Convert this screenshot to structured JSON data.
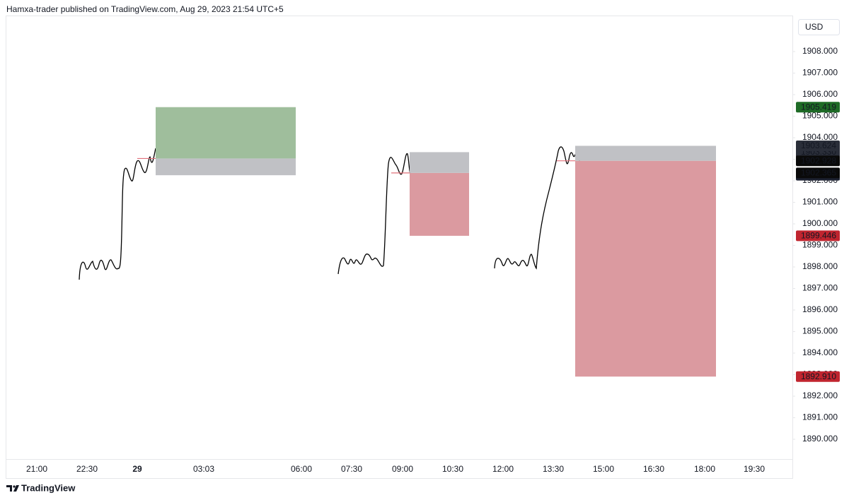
{
  "chart_data": {
    "type": "position",
    "title": "Hamxa-trader published on TradingView.com, Aug 29, 2023 21:54 UTC+5",
    "currency": "USD",
    "brand": "TradingView",
    "ylim": [
      1889.082,
      1909.672
    ],
    "yticks": [
      {
        "value": 1890,
        "label": "1890.000"
      },
      {
        "value": 1891,
        "label": "1891.000"
      },
      {
        "value": 1892,
        "label": "1892.000"
      },
      {
        "value": 1893,
        "label": "1893.000"
      },
      {
        "value": 1894,
        "label": "1894.000"
      },
      {
        "value": 1895,
        "label": "1895.000"
      },
      {
        "value": 1896,
        "label": "1896.000"
      },
      {
        "value": 1897,
        "label": "1897.000"
      },
      {
        "value": 1898,
        "label": "1898.000"
      },
      {
        "value": 1899,
        "label": "1899.000"
      },
      {
        "value": 1900,
        "label": "1900.000"
      },
      {
        "value": 1901,
        "label": "1901.000"
      },
      {
        "value": 1902,
        "label": "1902.000"
      },
      {
        "value": 1903,
        "label": "1903.000"
      },
      {
        "value": 1904,
        "label": "1904.000"
      },
      {
        "value": 1905,
        "label": "1905.000"
      },
      {
        "value": 1906,
        "label": "1906.000"
      },
      {
        "value": 1907,
        "label": "1907.000"
      },
      {
        "value": 1908,
        "label": "1908.000"
      }
    ],
    "categories": [
      "21:00",
      "22:30",
      "29",
      "03:03",
      "06:00",
      "07:30",
      "09:00",
      "10:30",
      "12:00",
      "13:30",
      "15:00",
      "16:30",
      "18:00",
      "19:30"
    ],
    "positions": [
      {
        "target": 1905.419,
        "entry": 1903.035,
        "stop": 1902.258,
        "target_fill": "#9fbe9c",
        "stop_fill": "#c0c1c5",
        "label_colors": {
          "target": "#1e6b26",
          "entry": "#80838c",
          "stop": "#1c2130"
        }
      },
      {
        "target": 1899.446,
        "entry": 1902.365,
        "stop": {
          "value": 1903.33,
          "label": "1903.330"
        },
        "target_fill": "#db9aa0",
        "stop_fill": "#c0c1c5",
        "label_colors": {
          "target": "#c0252f",
          "entry": "#0a0a0a",
          "stop": "#2a2e39"
        }
      },
      {
        "target": {
          "value": 1892.91,
          "label": "1892.910"
        },
        "entry": 1902.928,
        "stop": 1903.624,
        "target_fill": "#db9aa0",
        "stop_fill": "#c0c1c5",
        "label_colors": {
          "target": "#c0252f",
          "entry": "#0a0a0a",
          "stop": "#2a2e39"
        }
      }
    ]
  }
}
